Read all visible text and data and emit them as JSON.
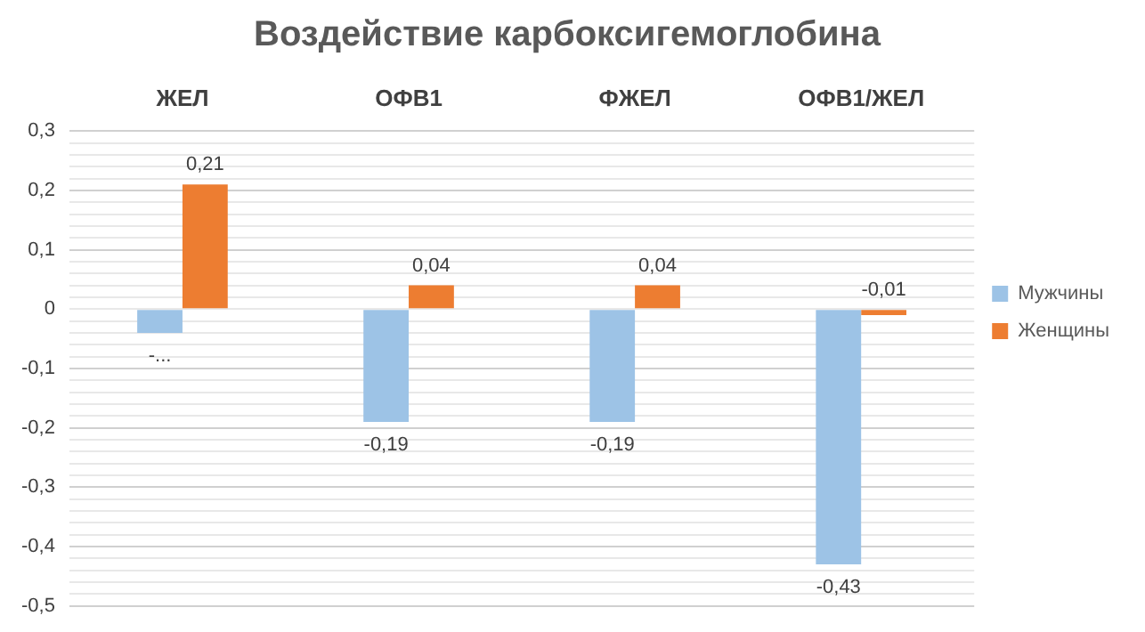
{
  "chart_data": {
    "type": "bar",
    "title": "Воздействие карбоксигемоглобина",
    "categories": [
      "ЖЕЛ",
      "ОФВ1",
      "ФЖЕЛ",
      "ОФВ1/ЖЕЛ"
    ],
    "series": [
      {
        "name": "Мужчины",
        "color": "#9dc3e6",
        "values": [
          -0.04,
          -0.19,
          -0.19,
          -0.43
        ],
        "value_labels": [
          "-...",
          "-0,19",
          "-0,19",
          "-0,43"
        ]
      },
      {
        "name": "Женщины",
        "color": "#ed7d31",
        "values": [
          0.21,
          0.04,
          0.04,
          -0.01
        ],
        "value_labels": [
          "0,21",
          "0,04",
          "0,04",
          "-0,01"
        ]
      }
    ],
    "ylim": [
      -0.5,
      0.3
    ],
    "yticks": [
      {
        "value": -0.5,
        "label": "-0,5"
      },
      {
        "value": -0.48,
        "label": null
      },
      {
        "value": -0.46,
        "label": null
      },
      {
        "value": -0.44,
        "label": null
      },
      {
        "value": -0.42,
        "label": null
      },
      {
        "value": -0.4,
        "label": "-0,4"
      },
      {
        "value": -0.38,
        "label": null
      },
      {
        "value": -0.36,
        "label": null
      },
      {
        "value": -0.34,
        "label": null
      },
      {
        "value": -0.32,
        "label": null
      },
      {
        "value": -0.3,
        "label": "-0,3"
      },
      {
        "value": -0.28,
        "label": null
      },
      {
        "value": -0.26,
        "label": null
      },
      {
        "value": -0.24,
        "label": null
      },
      {
        "value": -0.22,
        "label": null
      },
      {
        "value": -0.2,
        "label": "-0,2"
      },
      {
        "value": -0.18,
        "label": null
      },
      {
        "value": -0.16,
        "label": null
      },
      {
        "value": -0.14,
        "label": null
      },
      {
        "value": -0.12,
        "label": null
      },
      {
        "value": -0.1,
        "label": "-0,1"
      },
      {
        "value": -0.08,
        "label": null
      },
      {
        "value": -0.06,
        "label": null
      },
      {
        "value": -0.04,
        "label": null
      },
      {
        "value": -0.02,
        "label": null
      },
      0,
      {
        "value": 0.02,
        "label": null
      },
      {
        "value": 0.04,
        "label": null
      },
      {
        "value": 0.06,
        "label": null
      },
      {
        "value": 0.08,
        "label": null
      },
      {
        "value": 0.1,
        "label": "0,1"
      },
      {
        "value": 0.12,
        "label": null
      },
      {
        "value": 0.14,
        "label": null
      },
      {
        "value": 0.16,
        "label": null
      },
      {
        "value": 0.18,
        "label": null
      },
      {
        "value": 0.2,
        "label": "0,2"
      },
      {
        "value": 0.22,
        "label": null
      },
      {
        "value": 0.24,
        "label": null
      },
      {
        "value": 0.26,
        "label": null
      },
      {
        "value": 0.28,
        "label": null
      },
      {
        "value": 0.3,
        "label": "0,3"
      }
    ],
    "grid": "y",
    "legend": "right"
  }
}
